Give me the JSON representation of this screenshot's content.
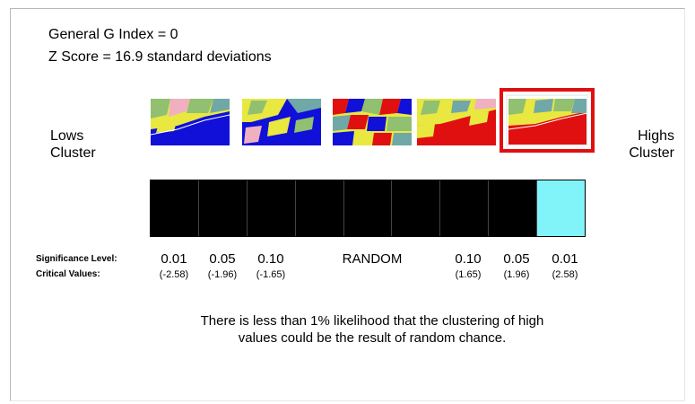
{
  "stats": {
    "general_g": "General G Index = 0",
    "z_symbol": "Z",
    "z_score": "Score = 16.9 standard deviations"
  },
  "labels": {
    "lows": [
      "Lows",
      "Cluster"
    ],
    "highs": [
      "Highs",
      "Cluster"
    ]
  },
  "maps": [
    {
      "name": "map-thumbnail-lows-cluster",
      "dominant": "blue"
    },
    {
      "name": "map-thumbnail-mostly-blue",
      "dominant": "blue"
    },
    {
      "name": "map-thumbnail-random",
      "dominant": "mixed"
    },
    {
      "name": "map-thumbnail-mostly-red",
      "dominant": "red"
    },
    {
      "name": "map-thumbnail-highs-cluster",
      "dominant": "red",
      "selected": true
    }
  ],
  "scale": {
    "cells": 9,
    "highlighted_index": 8,
    "cell_color": "#000000",
    "highlight_color": "#80f4f8"
  },
  "significance": {
    "row_label": "Significance Level:",
    "critical_label": "Critical Values:",
    "levels": [
      "0.01",
      "0.05",
      "0.10",
      "RANDOM",
      "0.10",
      "0.05",
      "0.01"
    ],
    "critical": [
      "(-2.58)",
      "(-1.96)",
      "(-1.65)",
      "",
      "(1.65)",
      "(1.96)",
      "(2.58)"
    ]
  },
  "message": {
    "line1": "There is less than 1% likelihood that the clustering of high",
    "line2": "values could be the result of random chance."
  },
  "colors": {
    "highlight_border": "#e01010",
    "map_blue": "#1010d8",
    "map_red": "#e01010",
    "map_yellow": "#e8e840",
    "map_green": "#90c070",
    "map_pink": "#f0b0c0",
    "map_teal": "#70a8a8"
  }
}
